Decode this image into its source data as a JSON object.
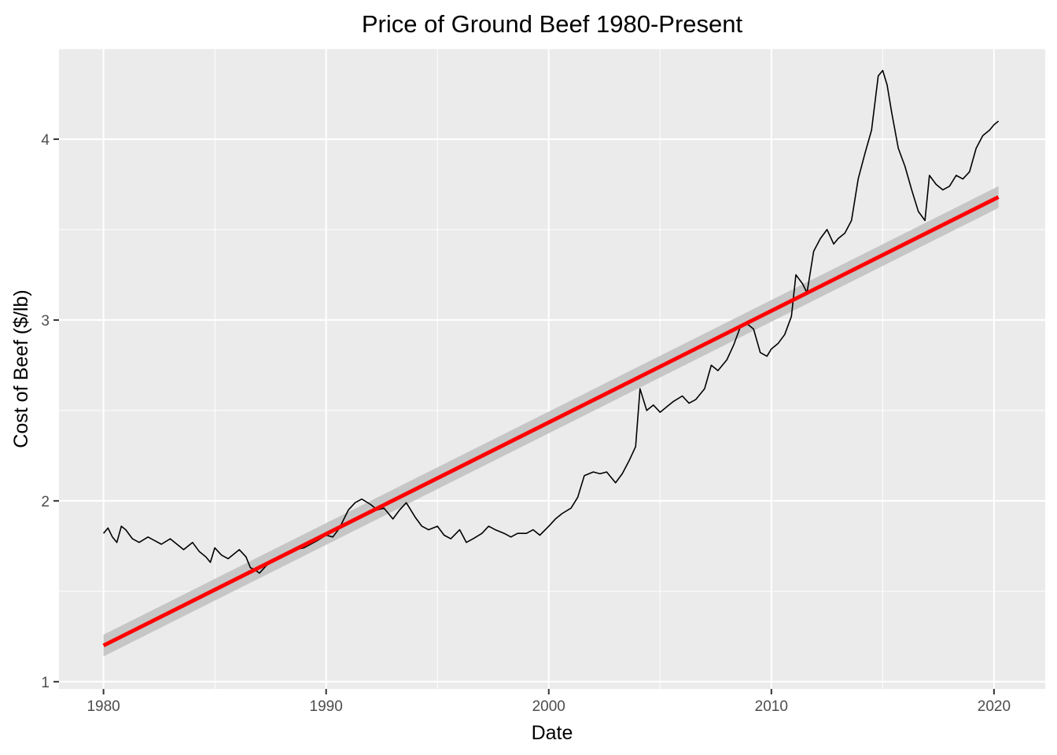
{
  "chart_data": {
    "type": "line",
    "title": "Price of Ground Beef 1980-Present",
    "xlabel": "Date",
    "ylabel": "Cost of Beef ($/lb)",
    "xlim": [
      1978,
      2022.3
    ],
    "ylim": [
      0.96,
      4.5
    ],
    "x_ticks": [
      1980,
      1990,
      2000,
      2010,
      2020
    ],
    "y_ticks": [
      1,
      2,
      3,
      4
    ],
    "grid": true,
    "colors": {
      "panel": "#ebebeb",
      "grid": "#ffffff",
      "line": "#000000",
      "trend": "#ff0000",
      "ribbon": "#c2c2c2"
    },
    "series": [
      {
        "type": "line",
        "x": [
          1980.0,
          1980.2,
          1980.4,
          1980.6,
          1980.8,
          1981.0,
          1981.3,
          1981.6,
          1982.0,
          1982.3,
          1982.6,
          1983.0,
          1983.3,
          1983.6,
          1984.0,
          1984.3,
          1984.6,
          1984.8,
          1985.0,
          1985.3,
          1985.6,
          1985.9,
          1986.1,
          1986.4,
          1986.6,
          1986.8,
          1987.0,
          1987.3,
          1987.6,
          1988.0,
          1988.3,
          1988.6,
          1989.0,
          1989.3,
          1989.6,
          1990.0,
          1990.3,
          1990.6,
          1991.0,
          1991.3,
          1991.6,
          1992.0,
          1992.3,
          1992.6,
          1993.0,
          1993.3,
          1993.6,
          1994.0,
          1994.3,
          1994.6,
          1995.0,
          1995.3,
          1995.6,
          1996.0,
          1996.3,
          1996.6,
          1997.0,
          1997.3,
          1997.6,
          1998.0,
          1998.3,
          1998.6,
          1999.0,
          1999.3,
          1999.6,
          2000.0,
          2000.3,
          2000.6,
          2001.0,
          2001.3,
          2001.6,
          2002.0,
          2002.3,
          2002.6,
          2003.0,
          2003.3,
          2003.6,
          2003.9,
          2004.1,
          2004.4,
          2004.7,
          2005.0,
          2005.3,
          2005.6,
          2006.0,
          2006.3,
          2006.6,
          2007.0,
          2007.3,
          2007.6,
          2008.0,
          2008.3,
          2008.6,
          2008.9,
          2009.2,
          2009.5,
          2009.8,
          2010.0,
          2010.3,
          2010.6,
          2010.9,
          2011.1,
          2011.4,
          2011.6,
          2011.9,
          2012.2,
          2012.5,
          2012.8,
          2013.0,
          2013.3,
          2013.6,
          2013.9,
          2014.2,
          2014.5,
          2014.8,
          2015.0,
          2015.2,
          2015.4,
          2015.7,
          2016.0,
          2016.3,
          2016.6,
          2016.9,
          2017.1,
          2017.4,
          2017.7,
          2018.0,
          2018.3,
          2018.6,
          2018.9,
          2019.2,
          2019.5,
          2019.8,
          2020.0,
          2020.2
        ],
        "y": [
          1.82,
          1.85,
          1.8,
          1.77,
          1.86,
          1.84,
          1.79,
          1.77,
          1.8,
          1.78,
          1.76,
          1.79,
          1.76,
          1.73,
          1.77,
          1.72,
          1.69,
          1.66,
          1.74,
          1.7,
          1.68,
          1.71,
          1.73,
          1.69,
          1.63,
          1.62,
          1.6,
          1.64,
          1.67,
          1.7,
          1.71,
          1.73,
          1.74,
          1.76,
          1.78,
          1.81,
          1.8,
          1.85,
          1.95,
          1.99,
          2.01,
          1.98,
          1.95,
          1.96,
          1.9,
          1.95,
          1.99,
          1.91,
          1.86,
          1.84,
          1.86,
          1.81,
          1.79,
          1.84,
          1.77,
          1.79,
          1.82,
          1.86,
          1.84,
          1.82,
          1.8,
          1.82,
          1.82,
          1.84,
          1.81,
          1.86,
          1.9,
          1.93,
          1.96,
          2.02,
          2.14,
          2.16,
          2.15,
          2.16,
          2.1,
          2.15,
          2.22,
          2.3,
          2.62,
          2.5,
          2.53,
          2.49,
          2.52,
          2.55,
          2.58,
          2.54,
          2.56,
          2.62,
          2.75,
          2.72,
          2.78,
          2.86,
          2.96,
          2.98,
          2.95,
          2.82,
          2.8,
          2.84,
          2.87,
          2.92,
          3.02,
          3.25,
          3.2,
          3.15,
          3.38,
          3.45,
          3.5,
          3.42,
          3.45,
          3.48,
          3.55,
          3.78,
          3.92,
          4.05,
          4.35,
          4.38,
          4.3,
          4.15,
          3.95,
          3.85,
          3.72,
          3.6,
          3.55,
          3.8,
          3.75,
          3.72,
          3.74,
          3.8,
          3.78,
          3.82,
          3.95,
          4.02,
          4.05,
          4.08,
          4.1
        ]
      },
      {
        "type": "trend",
        "x": [
          1980.0,
          2020.2
        ],
        "y": [
          1.2,
          3.68
        ],
        "band_lower": [
          1.14,
          3.62
        ],
        "band_upper": [
          1.26,
          3.74
        ]
      }
    ]
  }
}
